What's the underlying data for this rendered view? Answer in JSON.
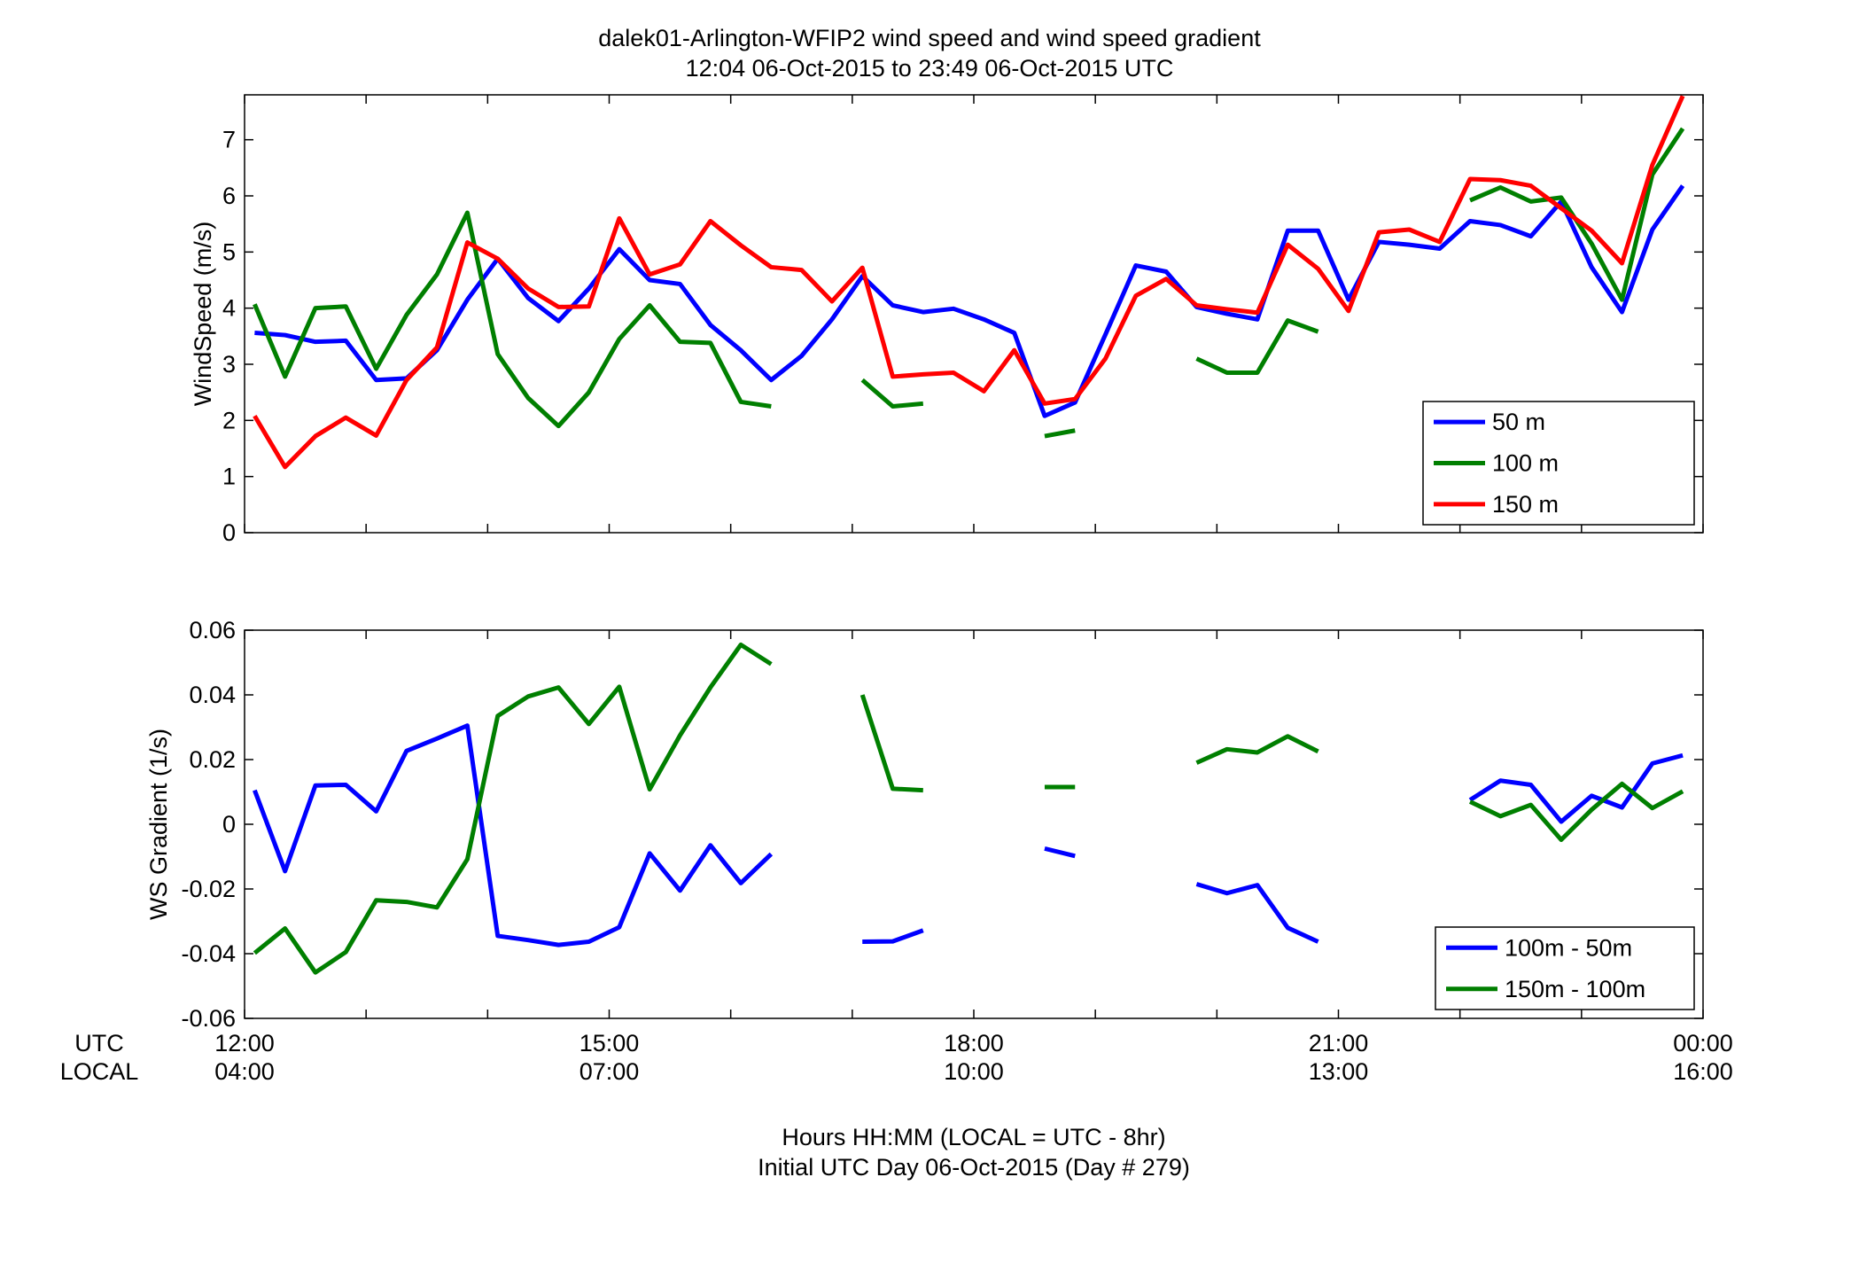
{
  "figure": {
    "title_line1": "dalek01-Arlington-WFIP2  wind speed and wind speed gradient",
    "title_line2": "12:04 06-Oct-2015 to 23:49 06-Oct-2015  UTC",
    "xlabel_line1": "Hours HH:MM  (LOCAL = UTC - 8hr)",
    "xlabel_line2": "Initial UTC Day 06-Oct-2015 (Day # 279)",
    "utc_row_label": "UTC",
    "local_row_label": "LOCAL",
    "utc_ticks": [
      "12:00",
      "15:00",
      "18:00",
      "21:00",
      "00:00"
    ],
    "local_ticks": [
      "04:00",
      "07:00",
      "10:00",
      "13:00",
      "16:00"
    ]
  },
  "colors": {
    "blue": "#0000ff",
    "green": "#007f00",
    "red": "#ff0000"
  },
  "chart_data": [
    {
      "type": "line",
      "panel": "top",
      "ylabel": "WindSpeed (m/s)",
      "xlim": [
        12,
        24
      ],
      "ylim": [
        0,
        7.8
      ],
      "yticks": [
        0,
        1,
        2,
        3,
        4,
        5,
        6,
        7
      ],
      "legend_position": "bottom-right",
      "x": [
        12.083,
        12.333,
        12.583,
        12.833,
        13.083,
        13.333,
        13.583,
        13.833,
        14.083,
        14.333,
        14.583,
        14.833,
        15.083,
        15.333,
        15.583,
        15.833,
        16.083,
        16.333,
        16.583,
        16.833,
        17.083,
        17.333,
        17.583,
        17.833,
        18.083,
        18.333,
        18.583,
        18.833,
        19.083,
        19.333,
        19.583,
        19.833,
        20.083,
        20.333,
        20.583,
        20.833,
        21.083,
        21.333,
        21.583,
        21.833,
        22.083,
        22.333,
        22.583,
        22.833,
        23.083,
        23.333,
        23.583,
        23.833
      ],
      "series": [
        {
          "name": "50 m",
          "color": "#0000ff",
          "values": [
            3.56,
            3.52,
            3.4,
            3.42,
            2.72,
            2.75,
            3.25,
            4.15,
            4.88,
            4.18,
            3.77,
            4.35,
            5.05,
            4.5,
            4.43,
            3.7,
            3.25,
            2.72,
            3.15,
            3.8,
            4.57,
            4.05,
            3.93,
            3.99,
            3.8,
            3.56,
            2.08,
            2.32,
            3.53,
            4.76,
            4.65,
            4.02,
            3.9,
            3.8,
            5.38,
            5.38,
            4.15,
            5.18,
            5.13,
            5.06,
            5.55,
            5.48,
            5.28,
            5.9,
            4.73,
            3.93,
            5.4,
            6.18
          ]
        },
        {
          "name": "100 m",
          "color": "#007f00",
          "values": [
            4.07,
            2.78,
            4.0,
            4.03,
            2.92,
            3.88,
            4.6,
            5.7,
            3.18,
            2.4,
            1.9,
            2.5,
            3.45,
            4.05,
            3.4,
            3.38,
            2.33,
            2.25,
            null,
            null,
            2.72,
            2.25,
            2.3,
            null,
            null,
            null,
            1.72,
            1.82,
            null,
            null,
            null,
            3.1,
            2.85,
            2.85,
            3.78,
            3.58,
            null,
            null,
            null,
            null,
            5.92,
            6.15,
            5.9,
            5.97,
            5.15,
            4.15,
            6.38,
            7.2
          ]
        },
        {
          "name": "150 m",
          "color": "#ff0000",
          "values": [
            2.08,
            1.17,
            1.72,
            2.05,
            1.73,
            2.72,
            3.3,
            5.17,
            4.88,
            4.35,
            4.02,
            4.03,
            5.6,
            4.6,
            4.78,
            5.55,
            5.12,
            4.73,
            4.68,
            4.12,
            4.72,
            2.78,
            2.82,
            2.85,
            2.52,
            3.25,
            2.3,
            2.38,
            3.1,
            4.22,
            4.52,
            4.05,
            3.98,
            3.92,
            5.13,
            4.7,
            3.95,
            5.35,
            5.4,
            5.18,
            6.3,
            6.28,
            6.18,
            5.78,
            5.38,
            4.8,
            6.55,
            7.78
          ]
        }
      ]
    },
    {
      "type": "line",
      "panel": "bottom",
      "ylabel": "WS Gradient (1/s)",
      "xlim": [
        12,
        24
      ],
      "ylim": [
        -0.06,
        0.06
      ],
      "yticks": [
        -0.06,
        -0.04,
        -0.02,
        0,
        0.02,
        0.04,
        0.06
      ],
      "legend_position": "bottom-right",
      "x": [
        12.083,
        12.333,
        12.583,
        12.833,
        13.083,
        13.333,
        13.583,
        13.833,
        14.083,
        14.333,
        14.583,
        14.833,
        15.083,
        15.333,
        15.583,
        15.833,
        16.083,
        16.333,
        16.583,
        16.833,
        17.083,
        17.333,
        17.583,
        17.833,
        18.083,
        18.333,
        18.583,
        18.833,
        19.083,
        19.333,
        19.583,
        19.833,
        20.083,
        20.333,
        20.583,
        20.833,
        21.083,
        21.333,
        21.583,
        21.833,
        22.083,
        22.333,
        22.583,
        22.833,
        23.083,
        23.333,
        23.583,
        23.833
      ],
      "series": [
        {
          "name": "100m - 50m",
          "color": "#0000ff",
          "values": [
            0.0105,
            -0.0145,
            0.012,
            0.0122,
            0.004,
            0.0227,
            0.0265,
            0.0305,
            -0.0345,
            -0.0358,
            -0.0373,
            -0.0363,
            -0.0318,
            -0.009,
            -0.0205,
            -0.0065,
            -0.0182,
            -0.0092,
            null,
            null,
            -0.0363,
            -0.0362,
            -0.0328,
            null,
            null,
            null,
            -0.0075,
            -0.0098,
            null,
            null,
            null,
            -0.0185,
            -0.0213,
            -0.0188,
            -0.032,
            -0.0363,
            null,
            null,
            null,
            null,
            0.0075,
            0.0135,
            0.0122,
            0.0008,
            0.0088,
            0.0052,
            0.0188,
            0.0213
          ]
        },
        {
          "name": "150m - 100m",
          "color": "#007f00",
          "values": [
            -0.0398,
            -0.0322,
            -0.0458,
            -0.0395,
            -0.0235,
            -0.024,
            -0.0257,
            -0.0108,
            0.0335,
            0.0395,
            0.0423,
            0.031,
            0.0425,
            0.0108,
            0.0275,
            0.0423,
            0.0555,
            0.0495,
            null,
            null,
            0.04,
            0.011,
            0.0105,
            null,
            null,
            null,
            0.0115,
            0.0115,
            null,
            null,
            null,
            0.019,
            0.0232,
            0.0222,
            0.0272,
            0.0225,
            null,
            null,
            null,
            null,
            0.007,
            0.0025,
            0.006,
            -0.0048,
            0.0045,
            0.0125,
            0.005,
            0.0102
          ]
        }
      ]
    }
  ]
}
